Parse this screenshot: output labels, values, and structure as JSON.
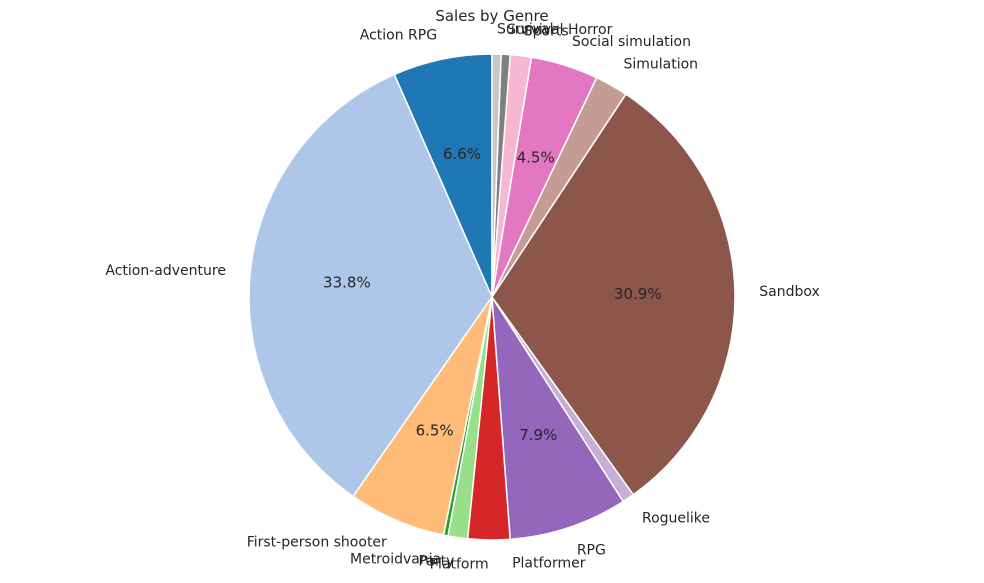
{
  "chart_data": {
    "type": "pie",
    "title": "Sales by Genre",
    "start_angle_deg": 90,
    "direction": "counterclockwise",
    "slices": [
      {
        "label": "Action RPG",
        "value": 6.6,
        "pct_label": "6.6%",
        "color": "#1f77b4"
      },
      {
        "label": "Action-adventure",
        "value": 33.8,
        "pct_label": "33.8%",
        "color": "#aec7e8"
      },
      {
        "label": "First-person shooter",
        "value": 6.5,
        "pct_label": "6.5%",
        "color": "#ffbb78"
      },
      {
        "label": "Metroidvania",
        "value": 0.3,
        "pct_label": "",
        "color": "#2ca02c"
      },
      {
        "label": "Party",
        "value": 1.3,
        "pct_label": "",
        "color": "#98df8a"
      },
      {
        "label": "Platform",
        "value": 2.8,
        "pct_label": "",
        "color": "#d62728"
      },
      {
        "label": "Platformer",
        "value": 0.0,
        "pct_label": "",
        "color": "#ff9896"
      },
      {
        "label": "RPG",
        "value": 7.9,
        "pct_label": "7.9%",
        "color": "#9467bd"
      },
      {
        "label": "Roguelike",
        "value": 0.8,
        "pct_label": "",
        "color": "#c5b0d5"
      },
      {
        "label": "Sandbox",
        "value": 30.9,
        "pct_label": "30.9%",
        "color": "#8c564b"
      },
      {
        "label": "Simulation",
        "value": 2.2,
        "pct_label": "",
        "color": "#c49c94"
      },
      {
        "label": "Social simulation",
        "value": 4.5,
        "pct_label": "4.5%",
        "color": "#e377c2"
      },
      {
        "label": "Sports",
        "value": 1.4,
        "pct_label": "",
        "color": "#f7b6d2"
      },
      {
        "label": "Survival Horror",
        "value": 0.6,
        "pct_label": "",
        "color": "#7f7f7f"
      },
      {
        "label": "Survival",
        "value": 0.6,
        "pct_label": "",
        "color": "#c7c7c7"
      }
    ]
  }
}
